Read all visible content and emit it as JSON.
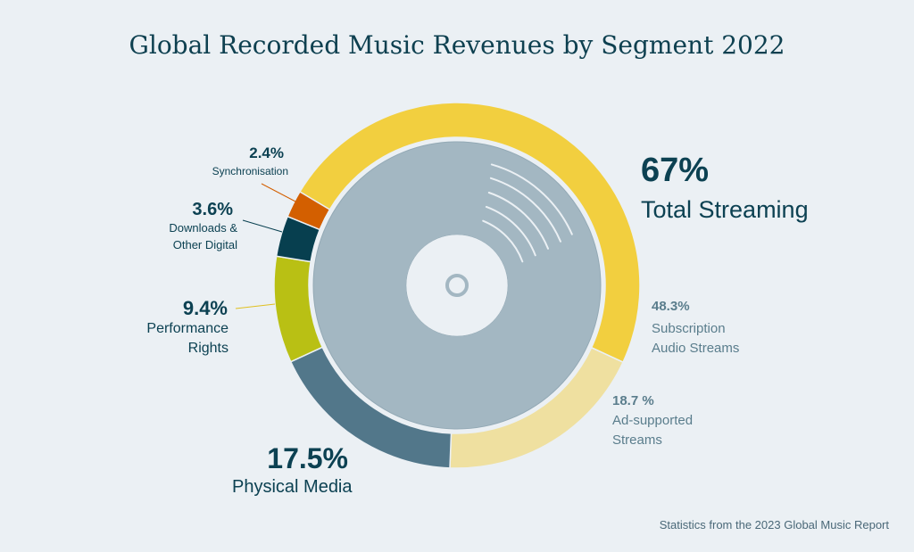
{
  "chart_data": {
    "type": "pie",
    "title": "Global Recorded Music Revenues by Segment 2022",
    "unit": "%",
    "slices": [
      {
        "key": "subscription",
        "label": "Subscription Audio Streams",
        "value": 48.3,
        "value_label": "48.3%",
        "color": "#f2cf3f"
      },
      {
        "key": "adsupported",
        "label": "Ad-supported Streams",
        "value": 18.7,
        "value_label": "18.7 %",
        "color": "#efe0a0"
      },
      {
        "key": "physical",
        "label": "Physical Media",
        "value": 17.5,
        "value_label": "17.5%",
        "color": "#52778a"
      },
      {
        "key": "performance",
        "label": "Performance Rights",
        "value": 9.4,
        "value_label": "9.4%",
        "color": "#b9c014"
      },
      {
        "key": "downloads",
        "label": "Downloads & Other Digital",
        "value": 3.6,
        "value_label": "3.6%",
        "color": "#073f4f"
      },
      {
        "key": "sync",
        "label": "Synchronisation",
        "value": 2.4,
        "value_label": "2.4%",
        "color": "#d35f00"
      }
    ],
    "group_annotation": {
      "value_label": "67%",
      "label": "Total Streaming"
    },
    "legend": "none"
  },
  "labels": {
    "subscription_l1": "Subscription",
    "subscription_l2": "Audio Streams",
    "ad_l1": "Ad-supported",
    "ad_l2": "Streams",
    "performance_l1": "Performance",
    "performance_l2": "Rights",
    "downloads_l1": "Downloads &",
    "downloads_l2": "Other Digital"
  },
  "footer": "Statistics from the 2023 Global Music Report",
  "colors": {
    "background": "#ebf0f4",
    "disc": "#a3b7c2",
    "text": "#0c4152"
  }
}
